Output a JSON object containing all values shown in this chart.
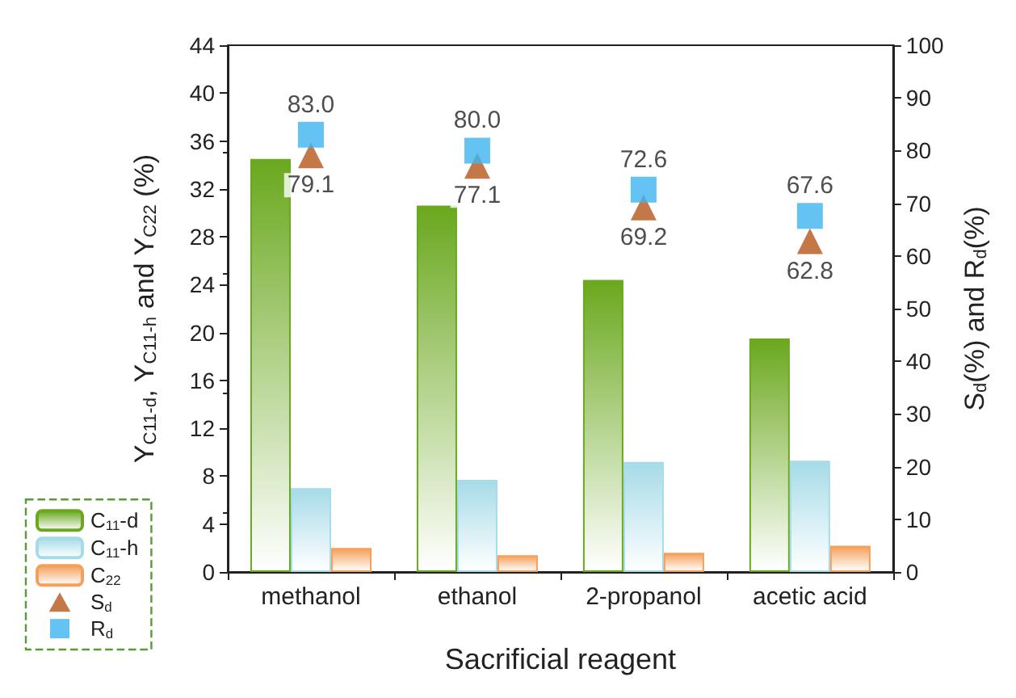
{
  "chart_data": {
    "type": "bar",
    "xlabel": "Sacrificial reagent",
    "ylabel": "Y$_{C11-d}$, Y$_{C11-h}$ and Y$_{C22}$ (%)",
    "y2label": "S$_{d}$(%) and R$_{d}$(%)",
    "categories": [
      "methanol",
      "ethanol",
      "2-propanol",
      "acetic acid"
    ],
    "series": [
      {
        "name": "C$_{11}$-d",
        "color": "#6aa81e",
        "values": [
          34.5,
          30.6,
          24.4,
          19.5
        ]
      },
      {
        "name": "C$_{11}$-h",
        "color": "#a6dbe8",
        "values": [
          7.0,
          7.7,
          9.2,
          9.3
        ]
      },
      {
        "name": "C$_{22}$",
        "color": "#f5a05a",
        "values": [
          2.0,
          1.4,
          1.6,
          2.2
        ]
      },
      {
        "name": "S$_{d}$",
        "type": "scatter",
        "axis": "y2",
        "marker": "triangle",
        "color": "#b5561a",
        "values": [
          79.1,
          77.1,
          69.2,
          62.8
        ],
        "value_labels": [
          "79.1",
          "77.1",
          "69.2",
          "62.8"
        ]
      },
      {
        "name": "R$_{d}$",
        "type": "scatter",
        "axis": "y2",
        "marker": "square",
        "color": "#3fb4f0",
        "values": [
          83.0,
          80.0,
          72.6,
          67.6
        ],
        "value_labels": [
          "83.0",
          "80.0",
          "72.6",
          "67.6"
        ]
      }
    ],
    "ylim": [
      0,
      44
    ],
    "yticks": [
      0,
      4,
      8,
      12,
      16,
      20,
      24,
      28,
      32,
      36,
      40,
      44
    ],
    "y2lim": [
      0,
      100
    ],
    "y2ticks": [
      0,
      10,
      20,
      30,
      40,
      50,
      60,
      70,
      80,
      90,
      100
    ],
    "grid": false,
    "legend": "bottom left"
  }
}
